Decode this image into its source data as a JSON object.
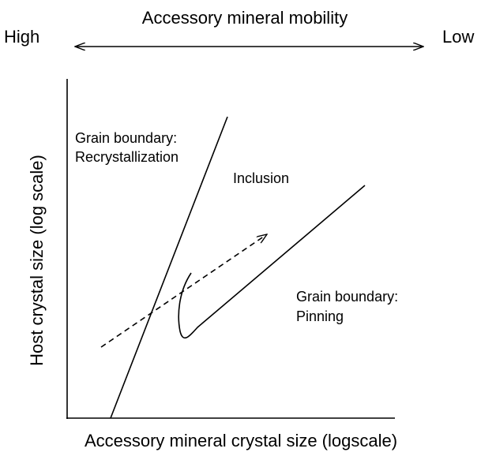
{
  "header": {
    "title": "Accessory mineral mobility",
    "left_label": "High",
    "right_label": "Low"
  },
  "axes": {
    "y_label": "Host crystal size (log scale)",
    "x_label": "Accessory mineral crystal size (logscale)"
  },
  "regions": [
    {
      "lines": [
        "Grain boundary:",
        "Recrystallization"
      ]
    },
    {
      "lines": [
        "Inclusion"
      ]
    },
    {
      "lines": [
        "Grain boundary:",
        "Pinning"
      ]
    }
  ]
}
